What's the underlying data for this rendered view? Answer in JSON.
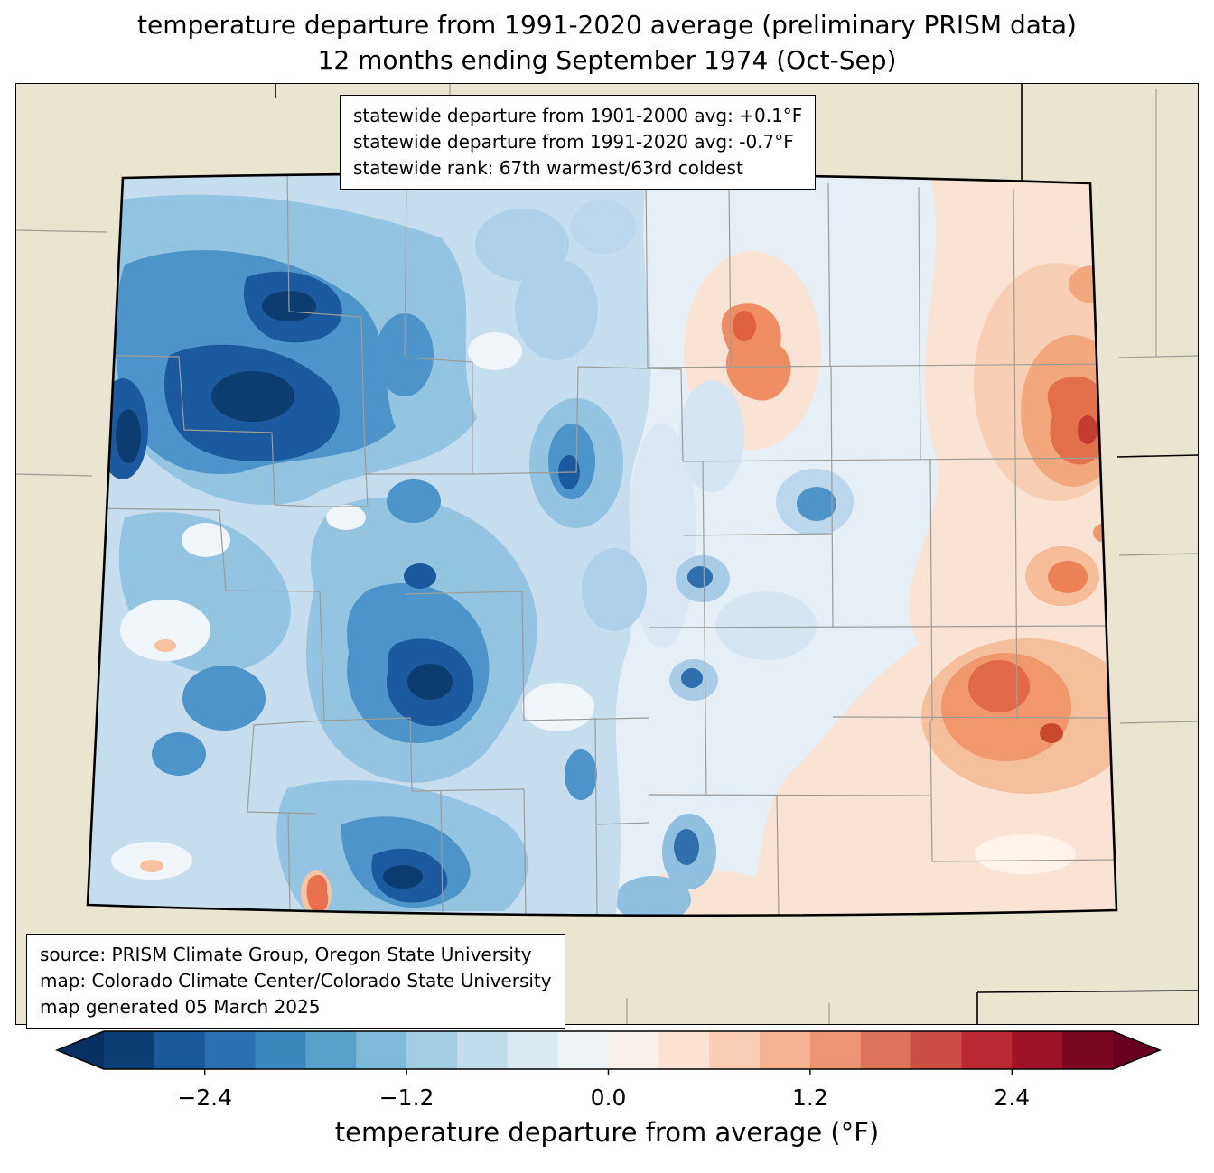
{
  "title": {
    "line1": "temperature departure from 1991-2020 average (preliminary PRISM data)",
    "line2": "12 months ending September 1974 (Oct-Sep)"
  },
  "stats_box": {
    "lines": [
      "statewide departure from 1901-2000 avg: +0.1°F",
      "statewide departure from 1991-2020 avg: -0.7°F",
      "statewide rank: 67th warmest/63rd coldest"
    ]
  },
  "source_box": {
    "lines": [
      "source: PRISM Climate Group, Oregon State University",
      "map: Colorado Climate Center/Colorado State University",
      "map generated 05 March 2025"
    ]
  },
  "colorbar": {
    "label": "temperature departure from average (°F)",
    "tick_labels": [
      "−2.4",
      "−1.2",
      "0.0",
      "1.2",
      "2.4"
    ],
    "tick_values": [
      -2.4,
      -1.2,
      0.0,
      1.2,
      2.4
    ],
    "range": [
      -3.0,
      3.0
    ],
    "colors": [
      "#0c3e74",
      "#1a5999",
      "#2a71b2",
      "#3b88bd",
      "#57a0ca",
      "#7eb9d7",
      "#a2cde3",
      "#c1ddec",
      "#dbeaf2",
      "#eef3f5",
      "#f9f0eb",
      "#fce2d3",
      "#fbceb6",
      "#f6b393",
      "#ed9475",
      "#de715a",
      "#cd4e45",
      "#bb2a34",
      "#9f1228",
      "#7a0622"
    ],
    "under_color": "#053061",
    "over_color": "#67001f"
  },
  "map": {
    "background_color": "#e9e5d0",
    "county_line_color": "#9d9d97",
    "state_border_color": "#000000"
  }
}
